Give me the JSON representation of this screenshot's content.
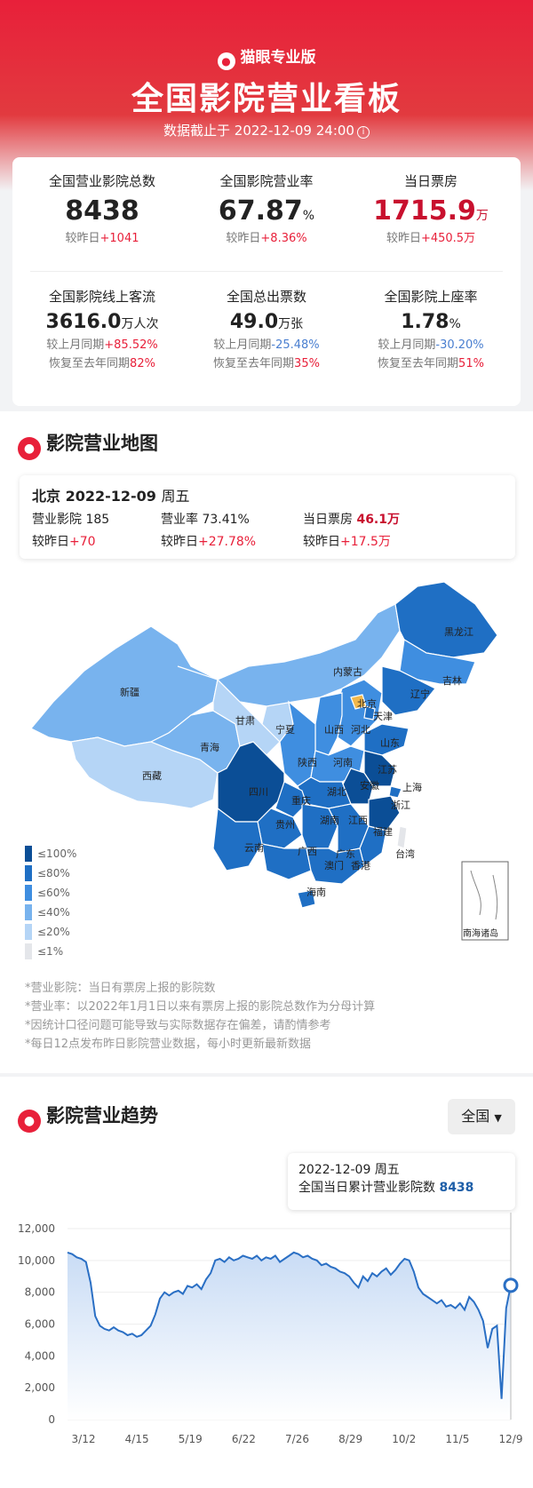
{
  "header": {
    "brand": "猫眼专业版",
    "title": "全国影院营业看板",
    "subtitle": "数据截止于 2022-12-09 24:00"
  },
  "stats": {
    "operating_cinemas": {
      "label": "全国营业影院总数",
      "value": "8438",
      "compare_prefix": "较昨日",
      "compare_value": "+1041"
    },
    "operating_rate": {
      "label": "全国影院营业率",
      "value": "67.87",
      "unit": "%",
      "compare_prefix": "较昨日",
      "compare_value": "+8.36%"
    },
    "box_office": {
      "label": "当日票房",
      "value": "1715.9",
      "unit": "万",
      "compare_prefix": "较昨日",
      "compare_value": "+450.5万"
    },
    "online_traffic": {
      "label": "全国影院线上客流",
      "value": "3616.0",
      "unit": "万人次",
      "compare1_prefix": "较上月同期",
      "compare1_value": "+85.52%",
      "compare2_prefix": "恢复至去年同期",
      "compare2_value": "82%"
    },
    "tickets": {
      "label": "全国总出票数",
      "value": "49.0",
      "unit": "万张",
      "compare1_prefix": "较上月同期",
      "compare1_value": "-25.48%",
      "compare2_prefix": "恢复至去年同期",
      "compare2_value": "35%"
    },
    "occupancy": {
      "label": "全国影院上座率",
      "value": "1.78",
      "unit": "%",
      "compare1_prefix": "较上月同期",
      "compare1_value": "-30.20%",
      "compare2_prefix": "恢复至去年同期",
      "compare2_value": "51%"
    }
  },
  "map_section": {
    "title": "影院营业地图",
    "city": "北京",
    "date": "2022-12-09",
    "weekday": "周五",
    "cinemas_label": "营业影院",
    "cinemas_value": "185",
    "rate_label": "营业率",
    "rate_value": "73.41%",
    "bo_label": "当日票房",
    "bo_value": "46.1万",
    "cinemas_cmp_prefix": "较昨日",
    "cinemas_cmp_value": "+70",
    "rate_cmp_prefix": "较昨日",
    "rate_cmp_value": "+27.78%",
    "bo_cmp_prefix": "较昨日",
    "bo_cmp_value": "+17.5万",
    "provinces": [
      "新疆",
      "西藏",
      "青海",
      "甘肃",
      "宁夏",
      "内蒙古",
      "黑龙江",
      "吉林",
      "辽宁",
      "北京",
      "天津",
      "河北",
      "山西",
      "山东",
      "陕西",
      "河南",
      "四川",
      "重庆",
      "湖北",
      "安徽",
      "江苏",
      "上海",
      "浙江",
      "贵州",
      "湖南",
      "江西",
      "福建",
      "云南",
      "广西",
      "广东",
      "澳门",
      "香港",
      "台湾",
      "海南"
    ],
    "south_sea_label": "南海诸岛",
    "legend": [
      {
        "label": "≤100%",
        "color": "#0b4e96"
      },
      {
        "label": "≤80%",
        "color": "#1f6fc4"
      },
      {
        "label": "≤60%",
        "color": "#3f8ee0"
      },
      {
        "label": "≤40%",
        "color": "#78b3ee"
      },
      {
        "label": "≤20%",
        "color": "#b5d5f6"
      },
      {
        "label": "≤1%",
        "color": "#e4e6ea"
      }
    ],
    "notes": [
      "*营业影院：当日有票房上报的影院数",
      "*营业率：以2022年1月1日以来有票房上报的影院总数作为分母计算",
      "*因统计口径问题可能导致与实际数据存在偏差，请酌情参考",
      "*每日12点发布昨日影院营业数据，每小时更新最新数据"
    ]
  },
  "trend_section": {
    "title": "影院营业趋势",
    "region_button": "全国",
    "tooltip_date": "2022-12-09 周五",
    "tooltip_label": "全国当日累计营业影院数",
    "tooltip_value": "8438"
  },
  "chart_data": {
    "type": "area",
    "title": "",
    "xlabel": "",
    "ylabel": "",
    "ylim": [
      0,
      12000
    ],
    "yticks": [
      "0",
      "2,000",
      "4,000",
      "6,000",
      "8,000",
      "10,000",
      "12,000"
    ],
    "xtick_labels": [
      "3/12",
      "4/15",
      "5/19",
      "6/22",
      "7/26",
      "8/29",
      "10/2",
      "11/5",
      "12/9"
    ],
    "series": [
      {
        "values": [
          10500,
          10400,
          10200,
          10100,
          9900,
          8600,
          6500,
          5900,
          5700,
          5600,
          5800,
          5600,
          5500,
          5300,
          5400,
          5200,
          5300,
          5600,
          5900,
          6600,
          7600,
          8000,
          7800,
          8000,
          8100,
          7900,
          8400,
          8300,
          8500,
          8200,
          8800,
          9200,
          10000,
          10100,
          9900,
          10200,
          10000,
          10100,
          10300,
          10200,
          10100,
          10300,
          10000,
          10200,
          10100,
          10300,
          9900,
          10100,
          10300,
          10500,
          10400,
          10200,
          10300,
          10100,
          10000,
          9700,
          9800,
          9600,
          9500,
          9300,
          9200,
          9000,
          8600,
          8300,
          9000,
          8700,
          9200,
          9000,
          9300,
          9500,
          9100,
          9400,
          9800,
          10100,
          10000,
          9300,
          8300,
          7900,
          7700,
          7500,
          7300,
          7500,
          7100,
          7200,
          7000,
          7300,
          6900,
          7700,
          7400,
          6900,
          6200,
          4500,
          5700,
          5900,
          1300,
          7000,
          8438
        ],
        "color": "#2a6fc4"
      }
    ]
  }
}
